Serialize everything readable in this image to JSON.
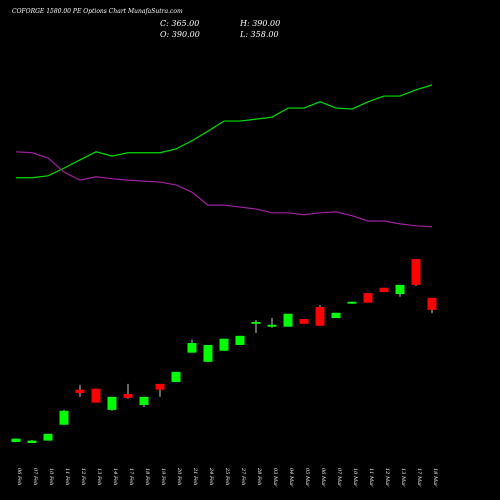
{
  "chart_data": {
    "type": "candlestick",
    "title": "COFORGE 1580.00 PE Options Chart MunafaSutra.com",
    "ohlc_labels": {
      "close": "C: 365.00",
      "open": "O: 390.00",
      "high": "H: 390.00",
      "low": "L: 358.00"
    },
    "categories": [
      "06 Feb",
      "07 Feb",
      "10 Feb",
      "11 Feb",
      "12 Feb",
      "13 Feb",
      "14 Feb",
      "17 Feb",
      "18 Feb",
      "19 Feb",
      "20 Feb",
      "21 Feb",
      "24 Feb",
      "25 Feb",
      "27 Feb",
      "28 Feb",
      "03 Mar",
      "04 Mar",
      "05 Mar",
      "06 Mar",
      "07 Mar",
      "10 Mar",
      "11 Mar",
      "12 Mar",
      "13 Mar",
      "17 Mar",
      "18 Mar"
    ],
    "open": [
      90,
      88,
      93,
      126,
      199,
      201,
      157,
      190,
      167,
      211,
      215,
      276,
      257,
      280,
      292,
      336,
      330,
      330,
      346,
      371,
      348,
      378,
      400,
      411,
      398,
      471,
      390
    ],
    "high": [
      97,
      94,
      107,
      157,
      209,
      201,
      184,
      211,
      184,
      211,
      236,
      303,
      292,
      305,
      311,
      344,
      348,
      357,
      346,
      375,
      359,
      382,
      400,
      411,
      417,
      471,
      390
    ],
    "low": [
      90,
      88,
      93,
      126,
      184,
      172,
      155,
      180,
      163,
      184,
      215,
      276,
      257,
      280,
      292,
      317,
      328,
      330,
      336,
      332,
      348,
      378,
      380,
      402,
      392,
      415,
      358
    ],
    "close": [
      97,
      93,
      107,
      155,
      192,
      172,
      184,
      182,
      184,
      199,
      236,
      296,
      292,
      305,
      311,
      340,
      334,
      357,
      336,
      332,
      359,
      382,
      380,
      402,
      417,
      417,
      365
    ],
    "up_color": "#00ff00",
    "down_color": "#ff0000",
    "series": [
      {
        "color": "#00e000",
        "values": [
          640,
          640,
          644,
          660,
          677,
          694,
          685,
          692,
          692,
          692,
          700,
          717,
          737,
          758,
          758,
          762,
          766,
          785,
          785,
          798,
          785,
          783,
          798,
          810,
          810,
          823,
          833
        ]
      },
      {
        "color": "#a020a0",
        "values": [
          694,
          692,
          681,
          652,
          635,
          642,
          638,
          635,
          633,
          631,
          625,
          610,
          583,
          583,
          579,
          575,
          567,
          567,
          563,
          567,
          569,
          561,
          550,
          550,
          544,
          540,
          538
        ]
      }
    ]
  }
}
